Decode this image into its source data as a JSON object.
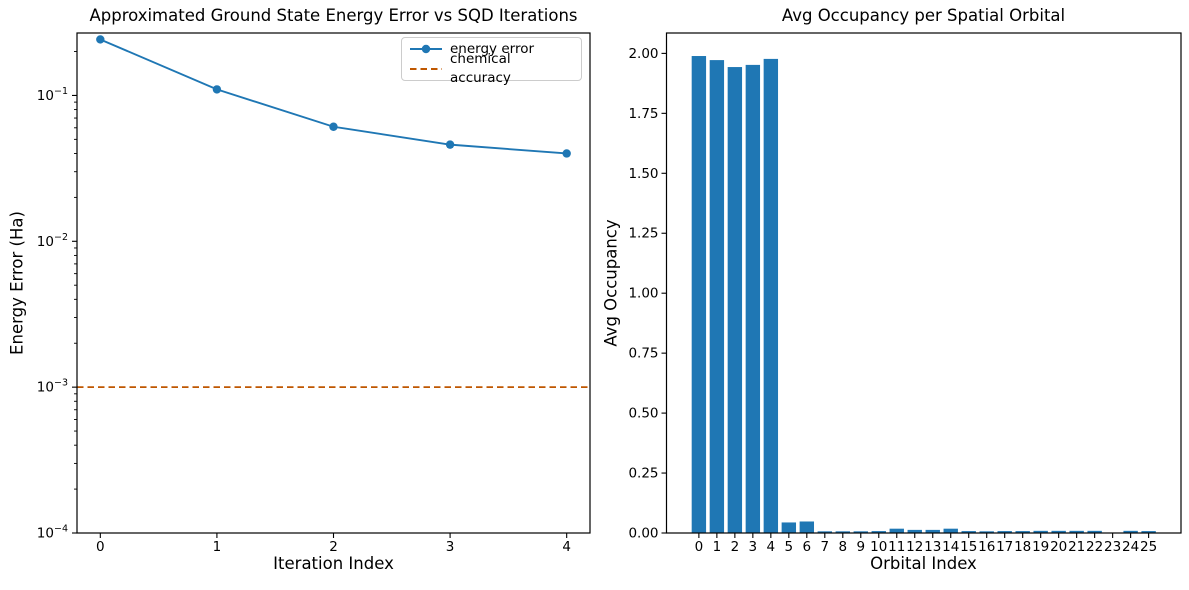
{
  "figure": {
    "background": "#ffffff",
    "accent_blue": "#1f77b4",
    "accent_orange": "#BF5700"
  },
  "chart_data": [
    {
      "type": "line",
      "title": "Approximated Ground State Energy Error vs SQD Iterations",
      "xlabel": "Iteration Index",
      "ylabel": "Energy Error (Ha)",
      "x": [
        0,
        1,
        2,
        3,
        4
      ],
      "series": [
        {
          "name": "energy error",
          "values": [
            0.242,
            0.11,
            0.061,
            0.046,
            0.04
          ],
          "color": "#1f77b4",
          "marker": "circle"
        }
      ],
      "hline": {
        "label": "chemical accuracy",
        "y": 0.001,
        "color": "#BF5700",
        "style": "dashed"
      },
      "yscale": "log",
      "xlim": [
        -0.2,
        4.2
      ],
      "ylim": [
        0.0001,
        0.268
      ],
      "x_ticks": [
        0,
        1,
        2,
        3,
        4
      ],
      "y_tick_exponents": [
        -1,
        -2,
        -3,
        -4
      ],
      "grid": false,
      "legend_position": "upper right"
    },
    {
      "type": "bar",
      "title": "Avg Occupancy per Spatial Orbital",
      "xlabel": "Orbital Index",
      "ylabel": "Avg Occupancy",
      "categories": [
        0,
        1,
        2,
        3,
        4,
        5,
        6,
        7,
        8,
        9,
        10,
        11,
        12,
        13,
        14,
        15,
        16,
        17,
        18,
        19,
        20,
        21,
        22,
        23,
        24,
        25
      ],
      "values": [
        1.989,
        1.972,
        1.943,
        1.952,
        1.977,
        0.044,
        0.048,
        0.007,
        0.007,
        0.007,
        0.008,
        0.018,
        0.013,
        0.013,
        0.018,
        0.008,
        0.007,
        0.008,
        0.008,
        0.009,
        0.009,
        0.009,
        0.009,
        0.002,
        0.009,
        0.008
      ],
      "bar_color": "#1f77b4",
      "xlim": [
        -1.8,
        26.8
      ],
      "ylim": [
        0,
        2.085
      ],
      "y_ticks": [
        0,
        0.25,
        0.5,
        0.75,
        1.0,
        1.25,
        1.5,
        1.75,
        2.0
      ],
      "y_tick_labels": [
        "0.00",
        "0.25",
        "0.50",
        "0.75",
        "1.00",
        "1.25",
        "1.50",
        "1.75",
        "2.00"
      ],
      "grid": false
    }
  ]
}
